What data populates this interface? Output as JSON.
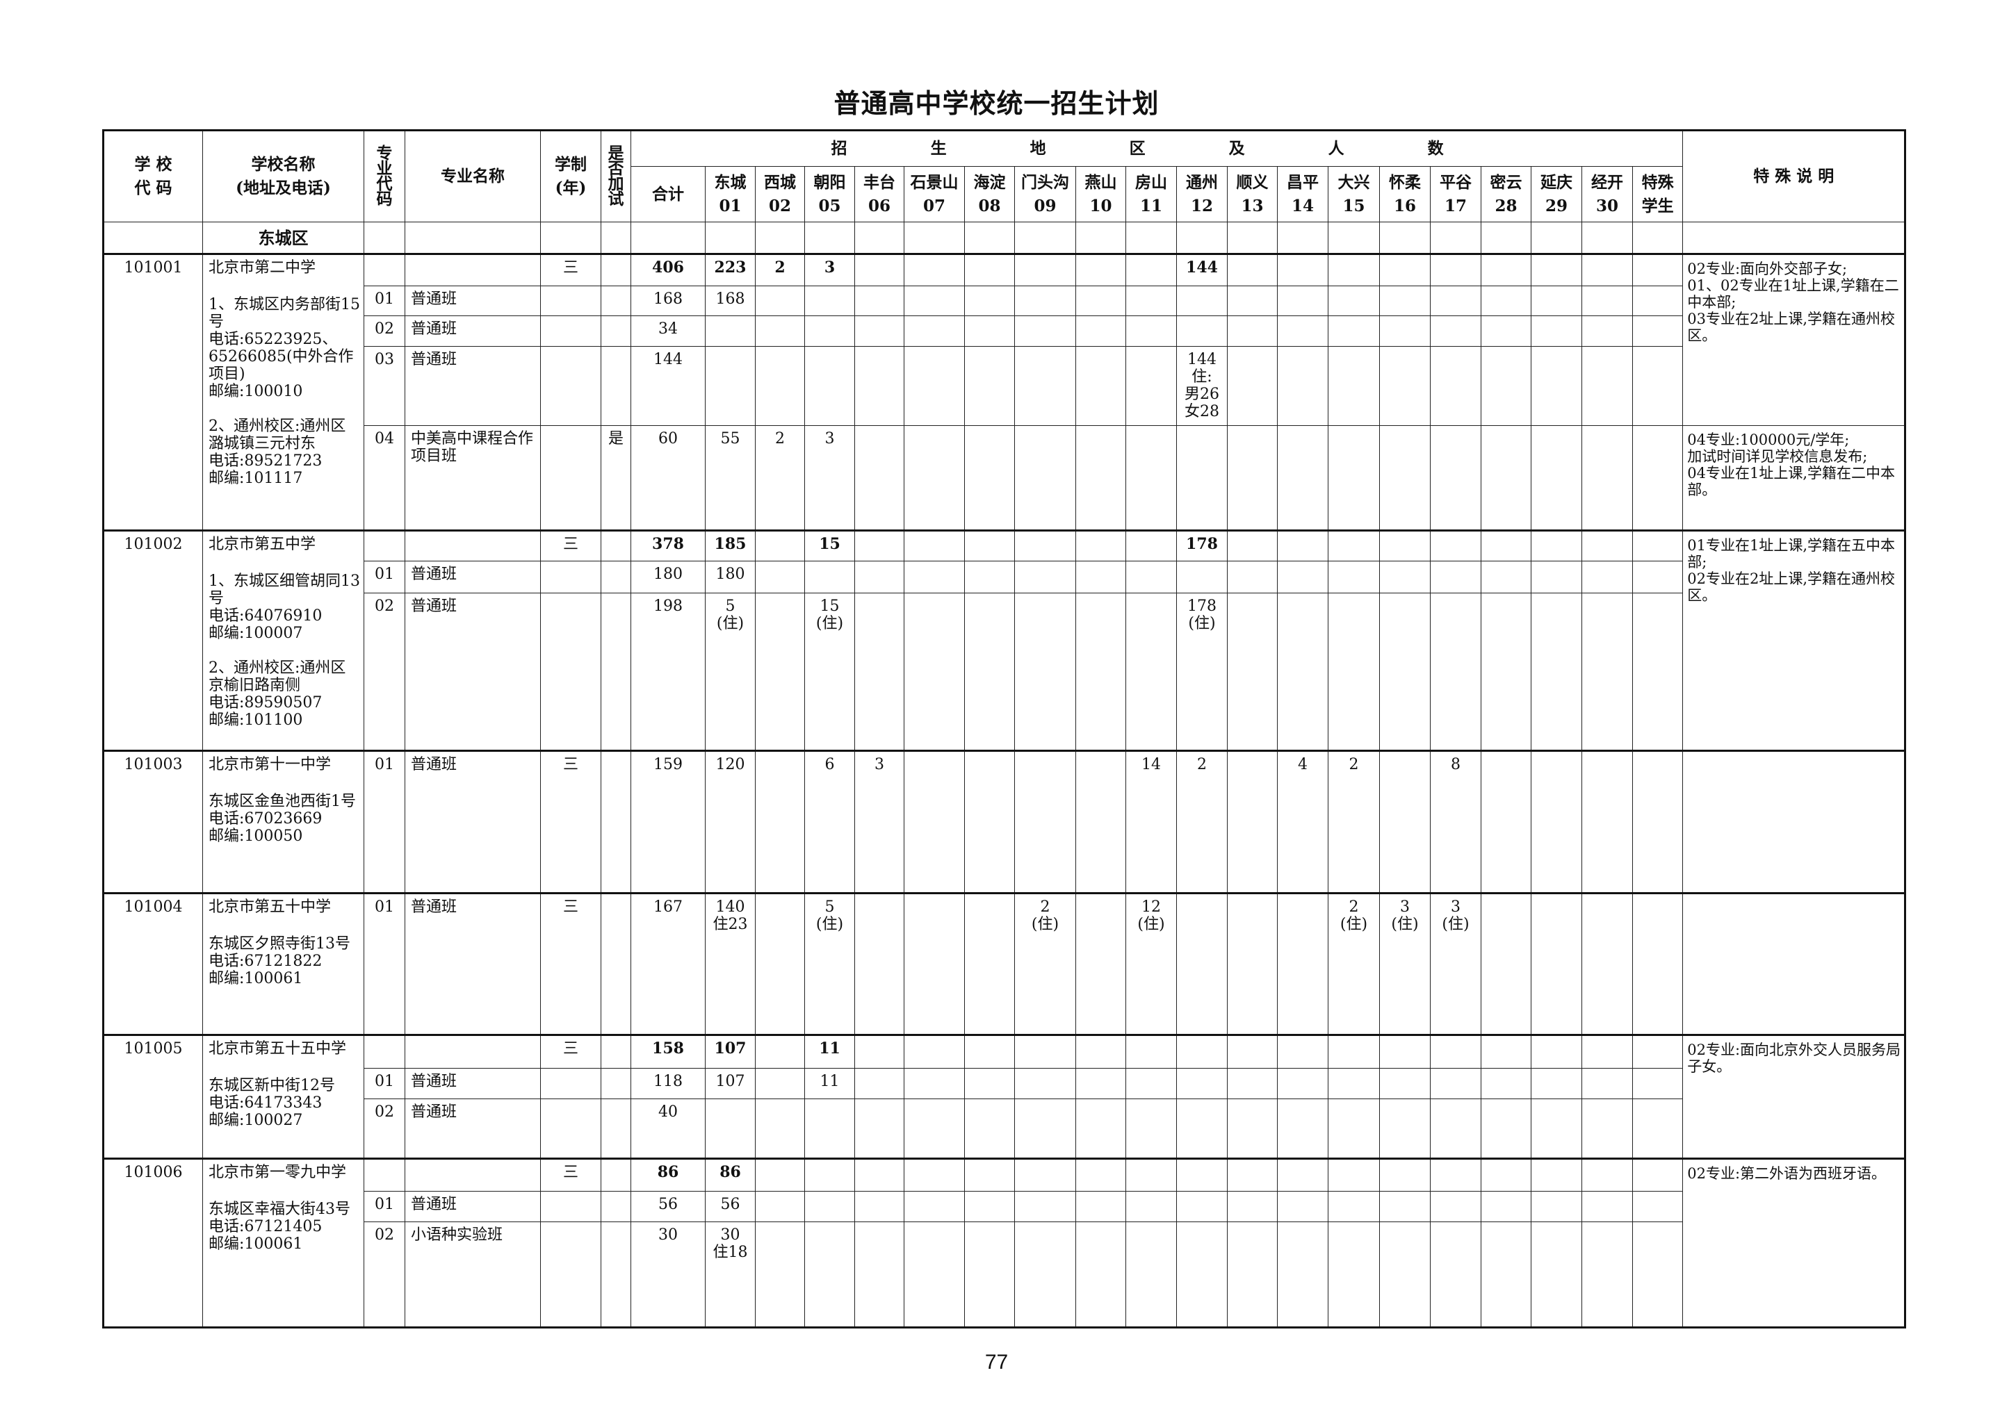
{
  "title": "普通高中学校统一招生计划",
  "page_number": "77",
  "header": {
    "school_code": "学 校\n代 码",
    "school_name": "学校名称\n(地址及电话)",
    "major_code": "专\n业\n代\n码",
    "major_name": "专业名称",
    "years": "学制\n(年)",
    "exam": "是\n否\n加\n试",
    "region_group": "招 生 地 区 及 人 数",
    "total": "合计",
    "notes": "特 殊 说 明",
    "regions": [
      {
        "key": "01",
        "name": "东城",
        "code": "01"
      },
      {
        "key": "02",
        "name": "西城",
        "code": "02"
      },
      {
        "key": "05",
        "name": "朝阳",
        "code": "05"
      },
      {
        "key": "06",
        "name": "丰台",
        "code": "06"
      },
      {
        "key": "07",
        "name": "石景山",
        "code": "07"
      },
      {
        "key": "08",
        "name": "海淀",
        "code": "08"
      },
      {
        "key": "09",
        "name": "门头沟",
        "code": "09"
      },
      {
        "key": "10",
        "name": "燕山",
        "code": "10"
      },
      {
        "key": "11",
        "name": "房山",
        "code": "11"
      },
      {
        "key": "12",
        "name": "通州",
        "code": "12"
      },
      {
        "key": "13",
        "name": "顺义",
        "code": "13"
      },
      {
        "key": "14",
        "name": "昌平",
        "code": "14"
      },
      {
        "key": "15",
        "name": "大兴",
        "code": "15"
      },
      {
        "key": "16",
        "name": "怀柔",
        "code": "16"
      },
      {
        "key": "17",
        "name": "平谷",
        "code": "17"
      },
      {
        "key": "28",
        "name": "密云",
        "code": "28"
      },
      {
        "key": "29",
        "name": "延庆",
        "code": "29"
      },
      {
        "key": "30",
        "name": "经开",
        "code": "30"
      },
      {
        "key": "special",
        "name": "特殊\n学生",
        "code": ""
      }
    ]
  },
  "district": "东城区",
  "schools": [
    {
      "code": "101001",
      "name": "北京市第二中学",
      "address": "1、东城区内务部街15号\n电话:65223925、65266085(中外合作项目)\n邮编:100010\n\n2、通州校区:通州区潞城镇三元村东\n电话:89521723\n邮编:101117",
      "notes": [
        {
          "text": "02专业:面向外交部子女;\n01、02专业在1址上课,学籍在二中本部;\n03专业在2址上课,学籍在通州校区。",
          "rows": 4
        },
        {
          "text": "04专业:100000元/学年;\n加试时间详见学校信息发布;\n04专业在1址上课,学籍在二中本部。",
          "rows": 1
        }
      ],
      "rows": [
        {
          "major_code": "",
          "major_name": "",
          "years": "三",
          "exam": "",
          "total": "406",
          "bold": true,
          "regions": {
            "01": "223",
            "02": "2",
            "05": "3",
            "12": "144"
          }
        },
        {
          "major_code": "01",
          "major_name": "普通班",
          "years": "",
          "exam": "",
          "total": "168",
          "regions": {
            "01": "168"
          }
        },
        {
          "major_code": "02",
          "major_name": "普通班",
          "years": "",
          "exam": "",
          "total": "34",
          "regions": {}
        },
        {
          "major_code": "03",
          "major_name": "普通班",
          "years": "",
          "exam": "",
          "total": "144",
          "regions": {
            "12": "144\n住:\n男26\n女28"
          }
        },
        {
          "major_code": "04",
          "major_name": "中美高中课程合作项目班",
          "years": "",
          "exam": "是",
          "total": "60",
          "regions": {
            "01": "55",
            "02": "2",
            "05": "3"
          }
        }
      ]
    },
    {
      "code": "101002",
      "name": "北京市第五中学",
      "address": "1、东城区细管胡同13号\n电话:64076910\n邮编:100007\n\n2、通州校区:通州区京榆旧路南侧\n电话:89590507\n邮编:101100",
      "notes": [
        {
          "text": "01专业在1址上课,学籍在五中本部;\n02专业在2址上课,学籍在通州校区。",
          "rows": 3
        }
      ],
      "rows": [
        {
          "major_code": "",
          "major_name": "",
          "years": "三",
          "exam": "",
          "total": "378",
          "bold": true,
          "regions": {
            "01": "185",
            "05": "15",
            "12": "178"
          }
        },
        {
          "major_code": "01",
          "major_name": "普通班",
          "years": "",
          "exam": "",
          "total": "180",
          "regions": {
            "01": "180"
          }
        },
        {
          "major_code": "02",
          "major_name": "普通班",
          "years": "",
          "exam": "",
          "total": "198",
          "regions": {
            "01": "5\n(住)",
            "05": "15\n(住)",
            "12": "178\n(住)"
          }
        }
      ]
    },
    {
      "code": "101003",
      "name": "北京市第十一中学",
      "address": "东城区金鱼池西街1号\n电话:67023669\n邮编:100050",
      "notes": [
        {
          "text": "",
          "rows": 1
        }
      ],
      "rows": [
        {
          "major_code": "01",
          "major_name": "普通班",
          "years": "三",
          "exam": "",
          "total": "159",
          "regions": {
            "01": "120",
            "05": "6",
            "06": "3",
            "11": "14",
            "12": "2",
            "14": "4",
            "15": "2",
            "17": "8"
          }
        }
      ]
    },
    {
      "code": "101004",
      "name": "北京市第五十中学",
      "address": "东城区夕照寺街13号\n电话:67121822\n邮编:100061",
      "notes": [
        {
          "text": "",
          "rows": 1
        }
      ],
      "rows": [
        {
          "major_code": "01",
          "major_name": "普通班",
          "years": "三",
          "exam": "",
          "total": "167",
          "regions": {
            "01": "140\n住23",
            "05": "5\n(住)",
            "09": "2\n(住)",
            "11": "12\n(住)",
            "15": "2\n(住)",
            "16": "3\n(住)",
            "17": "3\n(住)"
          }
        }
      ]
    },
    {
      "code": "101005",
      "name": "北京市第五十五中学",
      "address": "东城区新中街12号\n电话:64173343\n邮编:100027",
      "notes": [
        {
          "text": "02专业:面向北京外交人员服务局子女。",
          "rows": 3
        }
      ],
      "rows": [
        {
          "major_code": "",
          "major_name": "",
          "years": "三",
          "exam": "",
          "total": "158",
          "bold": true,
          "regions": {
            "01": "107",
            "05": "11"
          }
        },
        {
          "major_code": "01",
          "major_name": "普通班",
          "years": "",
          "exam": "",
          "total": "118",
          "regions": {
            "01": "107",
            "05": "11"
          }
        },
        {
          "major_code": "02",
          "major_name": "普通班",
          "years": "",
          "exam": "",
          "total": "40",
          "regions": {}
        }
      ]
    },
    {
      "code": "101006",
      "name": "北京市第一零九中学",
      "address": "东城区幸福大街43号\n电话:67121405\n邮编:100061",
      "notes": [
        {
          "text": "02专业:第二外语为西班牙语。",
          "rows": 3
        }
      ],
      "rows": [
        {
          "major_code": "",
          "major_name": "",
          "years": "三",
          "exam": "",
          "total": "86",
          "bold": true,
          "regions": {
            "01": "86"
          }
        },
        {
          "major_code": "01",
          "major_name": "普通班",
          "years": "",
          "exam": "",
          "total": "56",
          "regions": {
            "01": "56"
          }
        },
        {
          "major_code": "02",
          "major_name": "小语种实验班",
          "years": "",
          "exam": "",
          "total": "30",
          "regions": {
            "01": "30\n住18"
          }
        }
      ]
    }
  ]
}
